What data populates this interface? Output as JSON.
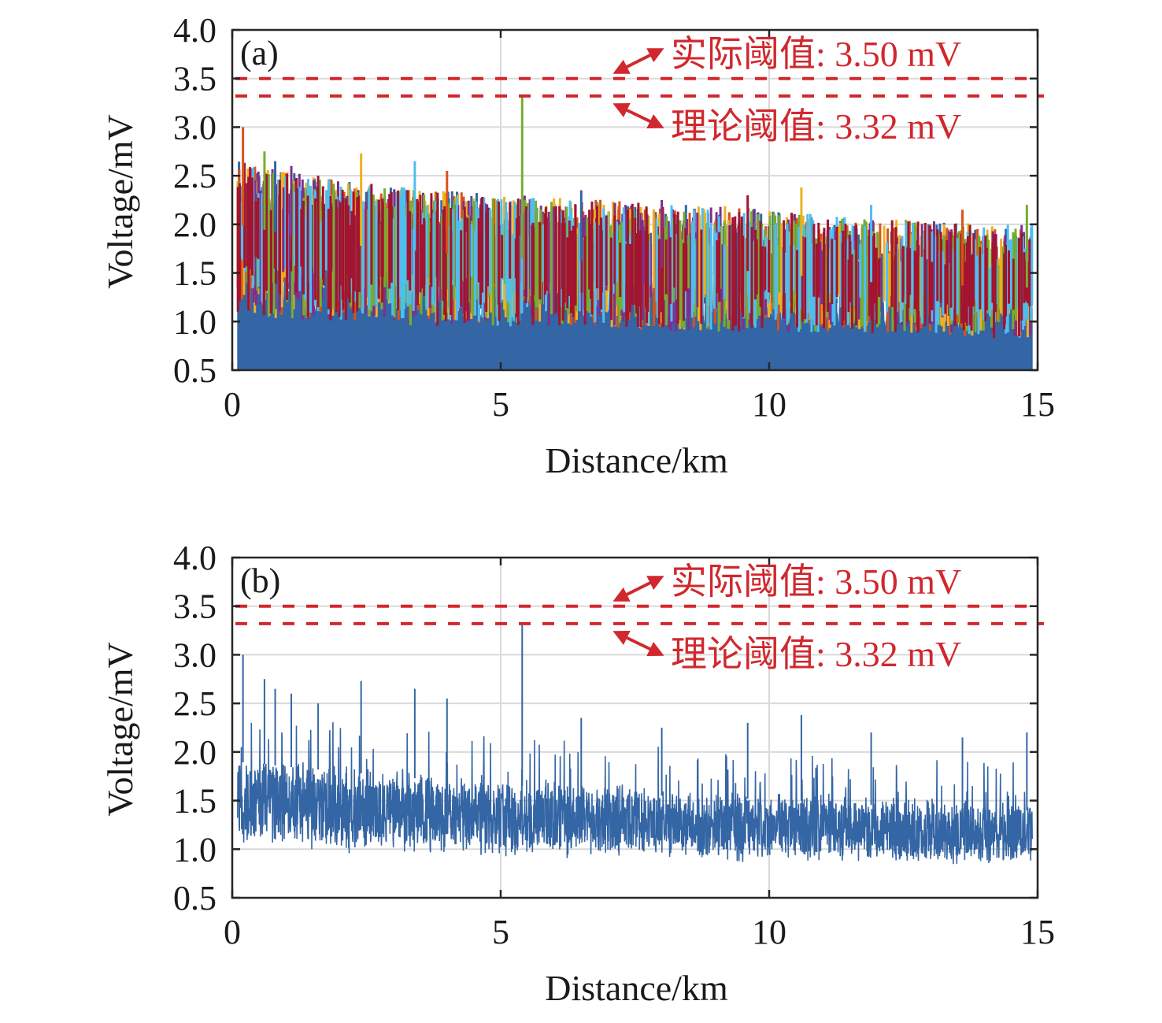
{
  "chart_data": [
    {
      "type": "line",
      "panel_label": "(a)",
      "title": "",
      "xlabel": "Distance/km",
      "ylabel": "Voltage/mV",
      "xlim": [
        0,
        15
      ],
      "ylim": [
        0.5,
        4.0
      ],
      "xticks": [
        "0",
        "5",
        "10",
        "15"
      ],
      "yticks": [
        "0.5",
        "1.0",
        "1.5",
        "2.0",
        "2.5",
        "3.0",
        "3.5",
        "4.0"
      ],
      "grid": true,
      "description": "Many overlaid noise traces (multi-colour) from 0.1 to 14.9 km; envelope peaks ~2.0-2.7 mV, decaying toward ~1.7 mV near 15 km; maximum spike ~3.31 mV at ~5.4 km",
      "series_colors": [
        "#3465a4",
        "#d95319",
        "#edb120",
        "#7e2f8e",
        "#77ac30",
        "#4dbeee",
        "#a2142f"
      ],
      "envelope": {
        "x": [
          0.1,
          1,
          2,
          3,
          4,
          5,
          6,
          7,
          8,
          9,
          10,
          11,
          12,
          13,
          14,
          14.9
        ],
        "upper": [
          2.2,
          2.1,
          2.0,
          1.95,
          1.9,
          1.85,
          1.85,
          1.8,
          1.75,
          1.75,
          1.7,
          1.65,
          1.6,
          1.6,
          1.55,
          1.55
        ],
        "lower": [
          0.95,
          0.9,
          0.9,
          0.85,
          0.85,
          0.85,
          0.85,
          0.85,
          0.8,
          0.8,
          0.8,
          0.8,
          0.8,
          0.8,
          0.75,
          0.75
        ]
      },
      "peaks": [
        {
          "x": 0.2,
          "y": 3.0
        },
        {
          "x": 0.6,
          "y": 2.75
        },
        {
          "x": 0.8,
          "y": 2.65
        },
        {
          "x": 1.1,
          "y": 2.6
        },
        {
          "x": 1.6,
          "y": 2.5
        },
        {
          "x": 2.4,
          "y": 2.73
        },
        {
          "x": 3.4,
          "y": 2.65
        },
        {
          "x": 4.0,
          "y": 2.55
        },
        {
          "x": 5.4,
          "y": 3.31
        },
        {
          "x": 6.5,
          "y": 2.35
        },
        {
          "x": 8.0,
          "y": 2.25
        },
        {
          "x": 9.6,
          "y": 2.3
        },
        {
          "x": 10.6,
          "y": 2.38
        },
        {
          "x": 11.9,
          "y": 2.2
        },
        {
          "x": 13.6,
          "y": 2.15
        },
        {
          "x": 14.8,
          "y": 2.2
        }
      ],
      "thresholds": [
        {
          "name": "actual",
          "value": 3.5,
          "label": "实际阈值: 3.50 mV",
          "color": "#d0282e"
        },
        {
          "name": "theoretical",
          "value": 3.32,
          "label": "理论阈值: 3.32 mV",
          "color": "#d0282e"
        }
      ]
    },
    {
      "type": "line",
      "panel_label": "(b)",
      "title": "",
      "xlabel": "Distance/km",
      "ylabel": "Voltage/mV",
      "xlim": [
        0,
        15
      ],
      "ylim": [
        0.5,
        4.0
      ],
      "xticks": [
        "0",
        "5",
        "10",
        "15"
      ],
      "yticks": [
        "0.5",
        "1.0",
        "1.5",
        "2.0",
        "2.5",
        "3.0",
        "3.5",
        "4.0"
      ],
      "grid": true,
      "description": "Single blue noise trace from 0.1 to 14.9 km; peaks up to ~2.75 mV decaying to ~2.2 mV; maximum spike ~3.31 mV at ~5.4 km",
      "series_colors": [
        "#3465a4"
      ],
      "envelope": {
        "x": [
          0.1,
          1,
          2,
          3,
          4,
          5,
          6,
          7,
          8,
          9,
          10,
          11,
          12,
          13,
          14,
          14.9
        ],
        "upper": [
          2.0,
          1.95,
          1.9,
          1.85,
          1.8,
          1.75,
          1.75,
          1.7,
          1.65,
          1.65,
          1.6,
          1.6,
          1.55,
          1.55,
          1.5,
          1.5
        ],
        "lower": [
          1.0,
          1.0,
          0.95,
          0.95,
          0.9,
          0.9,
          0.9,
          0.9,
          0.9,
          0.85,
          0.85,
          0.85,
          0.85,
          0.8,
          0.8,
          0.85
        ]
      },
      "peaks": [
        {
          "x": 0.2,
          "y": 3.0
        },
        {
          "x": 0.6,
          "y": 2.75
        },
        {
          "x": 0.8,
          "y": 2.65
        },
        {
          "x": 1.1,
          "y": 2.6
        },
        {
          "x": 1.6,
          "y": 2.5
        },
        {
          "x": 2.4,
          "y": 2.73
        },
        {
          "x": 3.4,
          "y": 2.65
        },
        {
          "x": 4.0,
          "y": 2.55
        },
        {
          "x": 5.4,
          "y": 3.31
        },
        {
          "x": 6.5,
          "y": 2.35
        },
        {
          "x": 8.0,
          "y": 2.25
        },
        {
          "x": 9.6,
          "y": 2.3
        },
        {
          "x": 10.6,
          "y": 2.38
        },
        {
          "x": 11.9,
          "y": 2.2
        },
        {
          "x": 13.6,
          "y": 2.15
        },
        {
          "x": 14.8,
          "y": 2.2
        }
      ],
      "thresholds": [
        {
          "name": "actual",
          "value": 3.5,
          "label": "实际阈值: 3.50 mV",
          "color": "#d0282e"
        },
        {
          "name": "theoretical",
          "value": 3.32,
          "label": "理论阈值: 3.32 mV",
          "color": "#d0282e"
        }
      ]
    }
  ]
}
